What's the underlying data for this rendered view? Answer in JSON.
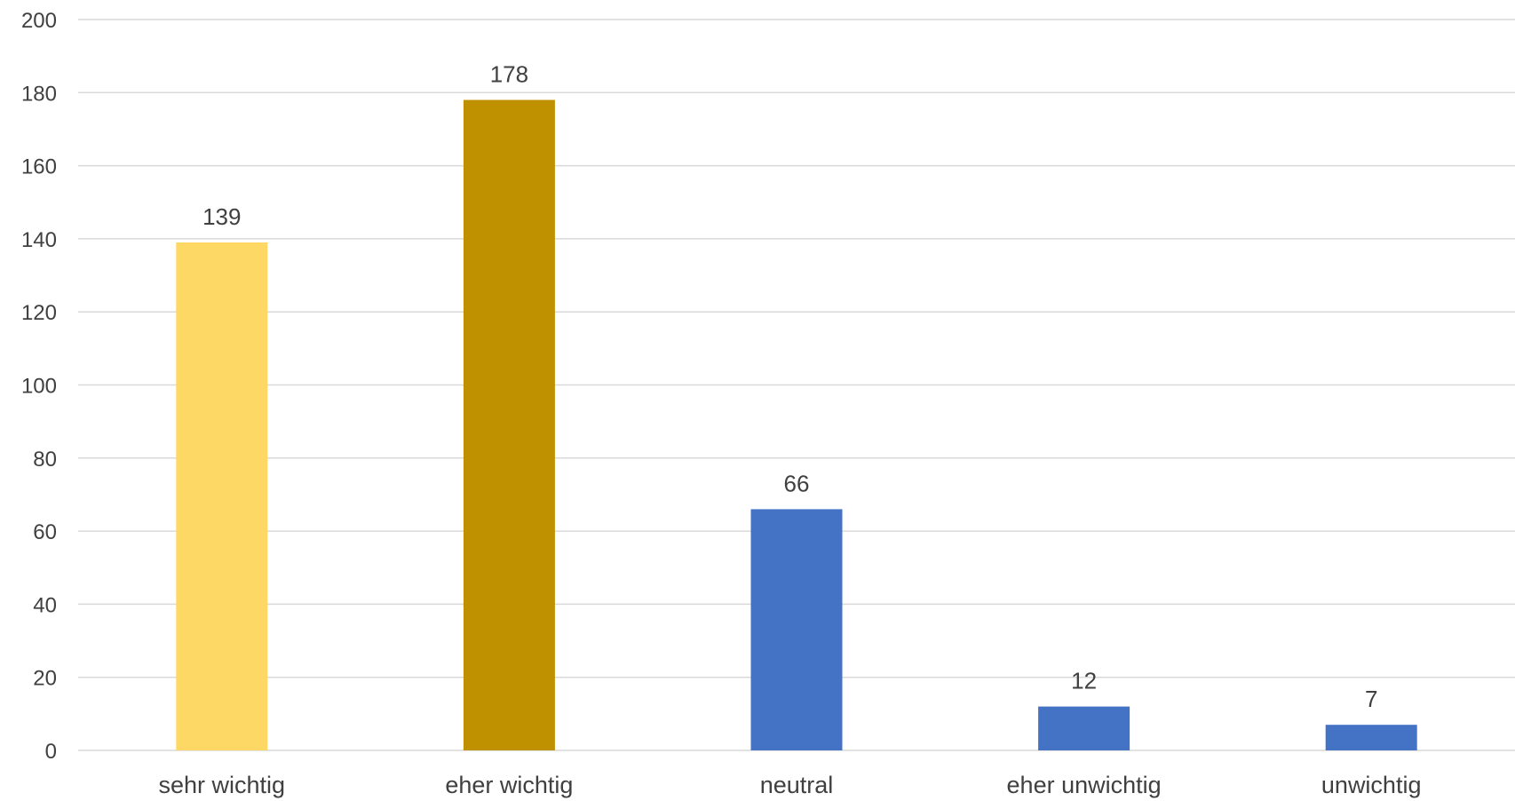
{
  "chart_data": {
    "type": "bar",
    "title": "",
    "xlabel": "",
    "ylabel": "",
    "categories": [
      "sehr wichtig",
      "eher wichtig",
      "neutral",
      "eher unwichtig",
      "unwichtig"
    ],
    "values": [
      139,
      178,
      66,
      12,
      7
    ],
    "data_labels": [
      "139",
      "178",
      "66",
      "12",
      "7"
    ],
    "bar_colors": [
      "#FDD865",
      "#BF9000",
      "#4472C4",
      "#4472C4",
      "#4472C4"
    ],
    "ylim": [
      0,
      200
    ],
    "y_ticks": [
      0,
      20,
      40,
      60,
      80,
      100,
      120,
      140,
      160,
      180,
      200
    ],
    "grid": true,
    "legend": "none"
  },
  "colors": {
    "gridline": "#D9D9D9",
    "text": "#404040",
    "background": "#FFFFFF"
  }
}
